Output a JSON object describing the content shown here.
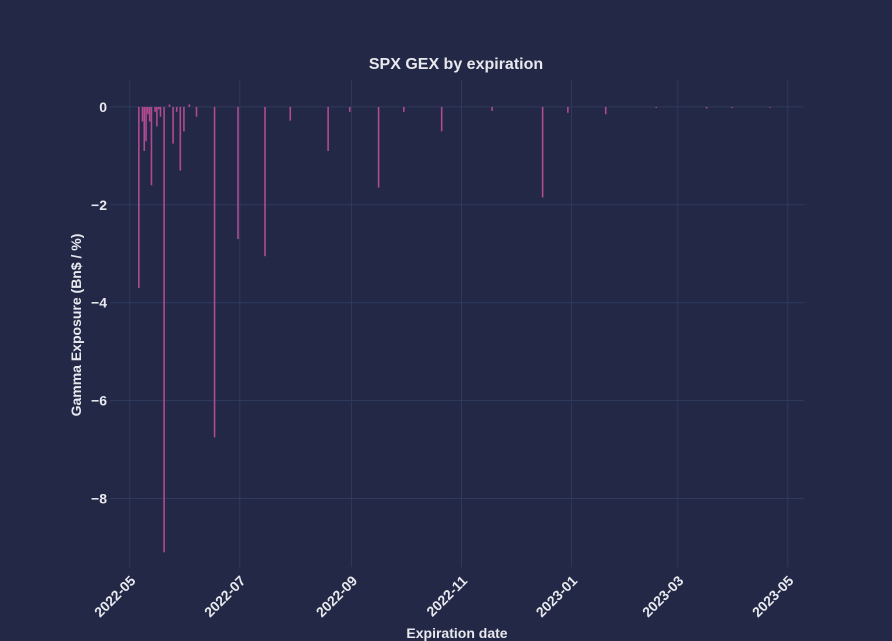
{
  "colors": {
    "background": "#222845",
    "bar": "#b04a91",
    "grid": "#2f3a5e",
    "text": "#e8e8ee"
  },
  "chart_data": {
    "type": "bar",
    "title": "SPX GEX by expiration",
    "xlabel": "Expiration date",
    "ylabel": "Gamma Exposure (Bn$ / %)",
    "xlim": [
      "2022-04-20",
      "2023-05-10"
    ],
    "ylim": [
      -9.4,
      0.55
    ],
    "grid": true,
    "x_ticks": [
      {
        "date": "2022-05-01",
        "label": "2022-05"
      },
      {
        "date": "2022-07-01",
        "label": "2022-07"
      },
      {
        "date": "2022-09-01",
        "label": "2022-09"
      },
      {
        "date": "2022-11-01",
        "label": "2022-11"
      },
      {
        "date": "2023-01-01",
        "label": "2023-01"
      },
      {
        "date": "2023-03-01",
        "label": "2023-03"
      },
      {
        "date": "2023-05-01",
        "label": "2023-05"
      }
    ],
    "y_ticks": [
      {
        "value": 0,
        "label": "0"
      },
      {
        "value": -2,
        "label": "−2"
      },
      {
        "value": -4,
        "label": "−4"
      },
      {
        "value": -6,
        "label": "−6"
      },
      {
        "value": -8,
        "label": "−8"
      }
    ],
    "series": [
      {
        "name": "GEX",
        "points": [
          {
            "date": "2022-05-06",
            "value": -3.7
          },
          {
            "date": "2022-05-08",
            "value": -0.3
          },
          {
            "date": "2022-05-09",
            "value": -0.9
          },
          {
            "date": "2022-05-10",
            "value": -0.7
          },
          {
            "date": "2022-05-11",
            "value": -0.15
          },
          {
            "date": "2022-05-12",
            "value": -0.3
          },
          {
            "date": "2022-05-13",
            "value": -1.6
          },
          {
            "date": "2022-05-15",
            "value": -0.1
          },
          {
            "date": "2022-05-16",
            "value": -0.4
          },
          {
            "date": "2022-05-17",
            "value": -0.05
          },
          {
            "date": "2022-05-18",
            "value": -0.2
          },
          {
            "date": "2022-05-20",
            "value": -9.1
          },
          {
            "date": "2022-05-23",
            "value": 0.05
          },
          {
            "date": "2022-05-25",
            "value": -0.75
          },
          {
            "date": "2022-05-27",
            "value": -0.1
          },
          {
            "date": "2022-05-29",
            "value": -1.3
          },
          {
            "date": "2022-05-31",
            "value": -0.5
          },
          {
            "date": "2022-06-03",
            "value": 0.05
          },
          {
            "date": "2022-06-07",
            "value": -0.2
          },
          {
            "date": "2022-06-17",
            "value": -6.75
          },
          {
            "date": "2022-06-30",
            "value": -2.7
          },
          {
            "date": "2022-07-15",
            "value": -3.05
          },
          {
            "date": "2022-07-29",
            "value": -0.28
          },
          {
            "date": "2022-08-19",
            "value": -0.9
          },
          {
            "date": "2022-08-31",
            "value": -0.1
          },
          {
            "date": "2022-09-16",
            "value": -1.65
          },
          {
            "date": "2022-09-30",
            "value": -0.1
          },
          {
            "date": "2022-10-21",
            "value": -0.5
          },
          {
            "date": "2022-11-18",
            "value": -0.08
          },
          {
            "date": "2022-12-16",
            "value": -1.85
          },
          {
            "date": "2022-12-30",
            "value": -0.12
          },
          {
            "date": "2023-01-20",
            "value": -0.15
          },
          {
            "date": "2023-02-17",
            "value": -0.02
          },
          {
            "date": "2023-03-17",
            "value": -0.03
          },
          {
            "date": "2023-03-31",
            "value": -0.02
          },
          {
            "date": "2023-04-21",
            "value": -0.01
          }
        ]
      }
    ]
  }
}
